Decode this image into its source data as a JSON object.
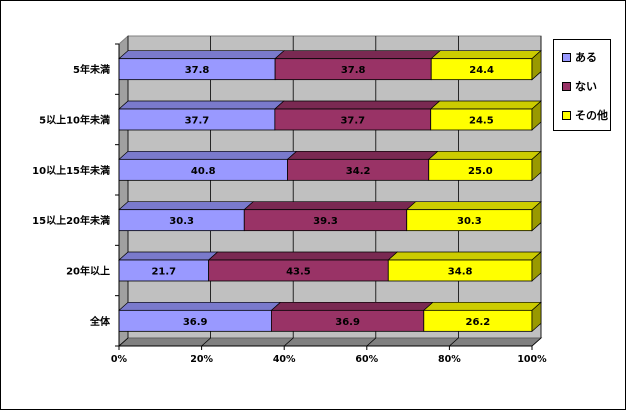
{
  "chart_data": {
    "type": "bar",
    "orientation": "horizontal",
    "stacked": "percent",
    "categories": [
      "5年未満",
      "5以上10年未満",
      "10以上15年未満",
      "15以上20年未満",
      "20年以上",
      "全体"
    ],
    "series": [
      {
        "name": "ある",
        "color": "#9999ff",
        "values": [
          37.8,
          37.7,
          40.8,
          30.3,
          21.7,
          36.9
        ]
      },
      {
        "name": "ない",
        "color": "#993366",
        "values": [
          37.8,
          37.7,
          34.2,
          39.3,
          43.5,
          36.9
        ]
      },
      {
        "name": "その他",
        "color": "#ffff00",
        "values": [
          24.4,
          24.5,
          25.0,
          30.3,
          34.8,
          26.2
        ]
      }
    ],
    "xlim": [
      0,
      100
    ],
    "xticks": [
      "0%",
      "20%",
      "40%",
      "60%",
      "80%",
      "100%"
    ],
    "grid": true,
    "legend": "right-top",
    "plot_background": "#c0c0c0"
  }
}
